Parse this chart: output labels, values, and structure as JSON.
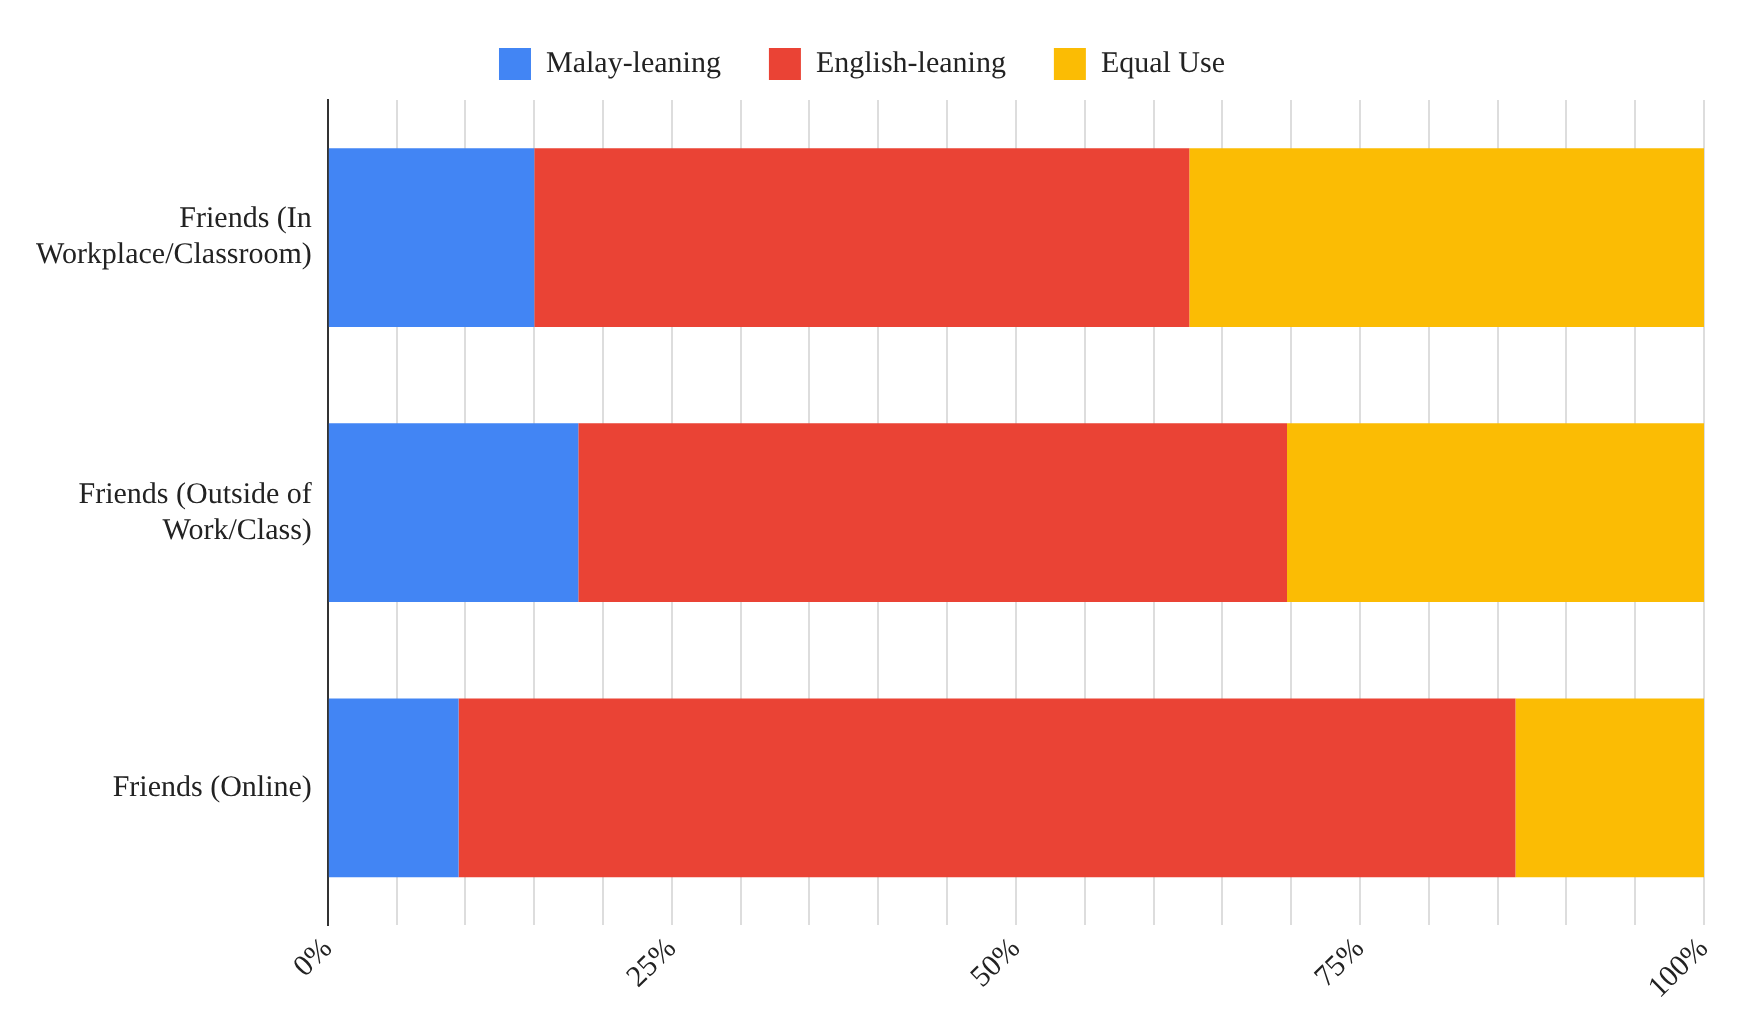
{
  "chart_data": {
    "type": "bar",
    "orientation": "horizontal",
    "stacked": true,
    "categories": [
      "Friends (In Workplace/Classroom)",
      "Friends (Outside of Work/Class)",
      "Friends (Online)"
    ],
    "series": [
      {
        "name": "Malay-leaning",
        "color": "#4285f4",
        "values": [
          15,
          18.2,
          9.5
        ]
      },
      {
        "name": "English-leaning",
        "color": "#ea4335",
        "values": [
          47.6,
          51.5,
          76.8
        ]
      },
      {
        "name": "Equal Use",
        "color": "#fbbc04",
        "values": [
          37.4,
          30.3,
          13.7
        ]
      }
    ],
    "xlim": [
      0,
      100
    ],
    "xticks": [
      {
        "value": 0,
        "label": "0%"
      },
      {
        "value": 5,
        "label": null
      },
      {
        "value": 10,
        "label": null
      },
      {
        "value": 15,
        "label": null
      },
      {
        "value": 20,
        "label": null
      },
      {
        "value": 25,
        "label": "25%"
      },
      {
        "value": 30,
        "label": null
      },
      {
        "value": 35,
        "label": null
      },
      {
        "value": 40,
        "label": null
      },
      {
        "value": 45,
        "label": null
      },
      {
        "value": 50,
        "label": "50%"
      },
      {
        "value": 55,
        "label": null
      },
      {
        "value": 60,
        "label": null
      },
      {
        "value": 65,
        "label": null
      },
      {
        "value": 70,
        "label": null
      },
      {
        "value": 75,
        "label": "75%"
      },
      {
        "value": 80,
        "label": null
      },
      {
        "value": 85,
        "label": null
      },
      {
        "value": 90,
        "label": null
      },
      {
        "value": 95,
        "label": null
      },
      {
        "value": 100,
        "label": "100%"
      }
    ],
    "grid": "x",
    "legend": "top"
  }
}
